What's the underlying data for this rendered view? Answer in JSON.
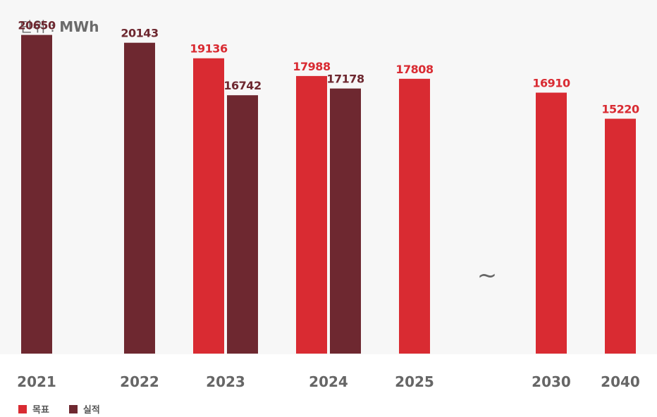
{
  "unit": {
    "label": "단위 : ",
    "value": "MWh"
  },
  "colors": {
    "target": "#d92b32",
    "actual": "#6e2830",
    "background": "#f7f7f7",
    "year_text": "#666666",
    "break_mark": "#666666"
  },
  "legend": [
    {
      "label": "목표",
      "series": "target"
    },
    {
      "label": "실적",
      "series": "actual"
    }
  ],
  "break_symbol": "~",
  "chart_data": {
    "type": "bar",
    "title": "",
    "xlabel": "",
    "ylabel": "단위 : MWh",
    "ylim": [
      0,
      22000
    ],
    "categories": [
      "2021",
      "2022",
      "2023",
      "2024",
      "2025",
      "2030",
      "2040"
    ],
    "axis_break_after": "2025",
    "series": [
      {
        "name": "목표",
        "key": "target",
        "values": [
          null,
          null,
          19136,
          17988,
          17808,
          16910,
          15220
        ]
      },
      {
        "name": "실적",
        "key": "actual",
        "values": [
          20650,
          20143,
          16742,
          17178,
          null,
          null,
          null
        ]
      }
    ]
  }
}
